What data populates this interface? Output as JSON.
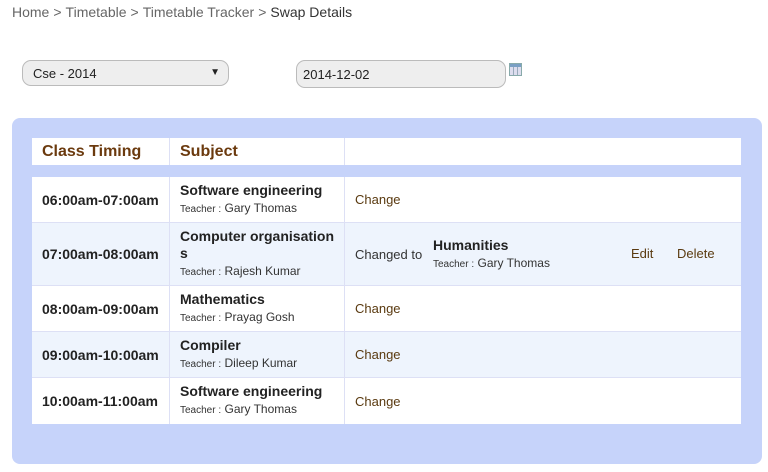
{
  "breadcrumb": [
    "Home",
    "Timetable",
    "Timetable Tracker",
    "Swap Details"
  ],
  "breadcrumb_sep": ">",
  "filters": {
    "class_select": "Cse - 2014",
    "date": "2014-12-02"
  },
  "table": {
    "headers": [
      "Class Timing",
      "Subject",
      ""
    ],
    "teacher_label": "Teacher :",
    "rows": [
      {
        "time": "06:00am-07:00am",
        "subject": "Software engineering",
        "teacher": "Gary Thomas",
        "action": "Change"
      },
      {
        "time": "07:00am-08:00am",
        "subject": "Computer organisations",
        "teacher": "Rajesh Kumar",
        "changed_label": "Changed to",
        "new_subject": "Humanities",
        "new_teacher": "Gary Thomas",
        "edit": "Edit",
        "delete": "Delete"
      },
      {
        "time": "08:00am-09:00am",
        "subject": "Mathematics",
        "teacher": "Prayag Gosh",
        "action": "Change"
      },
      {
        "time": "09:00am-10:00am",
        "subject": "Compiler",
        "teacher": "Dileep Kumar",
        "action": "Change"
      },
      {
        "time": "10:00am-11:00am",
        "subject": "Software engineering",
        "teacher": "Gary Thomas",
        "action": "Change"
      }
    ]
  }
}
